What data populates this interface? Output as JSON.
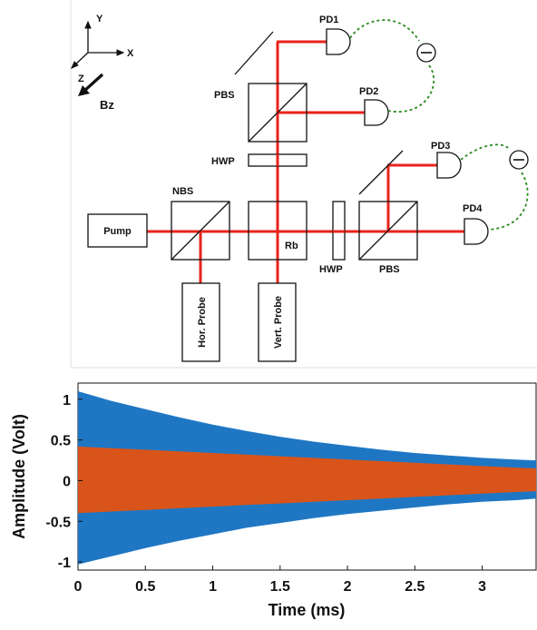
{
  "diagram": {
    "axes_labels": {
      "y": "Y",
      "x": "X",
      "z": "Z",
      "field": "Bz"
    },
    "components": {
      "pump": "Pump",
      "nbs": "NBS",
      "rb": "Rb",
      "pbs_top": "PBS",
      "hwp_top": "HWP",
      "hwp_right": "HWP",
      "pbs_right": "PBS",
      "pd1": "PD1",
      "pd2": "PD2",
      "pd3": "PD3",
      "pd4": "PD4",
      "hor_probe": "Hor. Probe",
      "vert_probe": "Vert. Probe"
    },
    "colors": {
      "beam": "#e8231b",
      "signal_link": "#2a8a1f",
      "outline": "#111111"
    }
  },
  "chart_data": {
    "type": "area",
    "xlabel": "Time (ms)",
    "ylabel": "Amplitude (Volt)",
    "xlim": [
      0,
      3.4
    ],
    "ylim": [
      -1.1,
      1.2
    ],
    "xticks": [
      0,
      0.5,
      1,
      1.5,
      2,
      2.5,
      3
    ],
    "xtick_labels": [
      "0",
      "0.5",
      "1",
      "1.5",
      "2",
      "2.5",
      "3"
    ],
    "yticks": [
      1,
      0.5,
      0,
      -0.5,
      -1
    ],
    "ytick_labels": [
      "1",
      "0.5",
      "0",
      "-0.5",
      "-1"
    ],
    "grid": false,
    "series": [
      {
        "color": "#1f77c4",
        "x": [
          0,
          0.25,
          0.5,
          0.75,
          1,
          1.25,
          1.5,
          1.75,
          2,
          2.25,
          2.5,
          2.75,
          3,
          3.25,
          3.4
        ],
        "upper": [
          1.1,
          0.98,
          0.88,
          0.78,
          0.69,
          0.61,
          0.54,
          0.48,
          0.43,
          0.38,
          0.34,
          0.31,
          0.28,
          0.26,
          0.25
        ],
        "lower": [
          -1.03,
          -0.93,
          -0.83,
          -0.74,
          -0.66,
          -0.58,
          -0.52,
          -0.46,
          -0.41,
          -0.37,
          -0.33,
          -0.29,
          -0.26,
          -0.24,
          -0.22
        ]
      },
      {
        "color": "#d9541a",
        "x": [
          0,
          0.25,
          0.5,
          0.75,
          1,
          1.25,
          1.5,
          1.75,
          2,
          2.25,
          2.5,
          2.75,
          3,
          3.25,
          3.4
        ],
        "upper": [
          0.42,
          0.4,
          0.38,
          0.36,
          0.34,
          0.32,
          0.3,
          0.28,
          0.26,
          0.24,
          0.22,
          0.2,
          0.18,
          0.16,
          0.15
        ],
        "lower": [
          -0.4,
          -0.38,
          -0.36,
          -0.34,
          -0.32,
          -0.3,
          -0.28,
          -0.26,
          -0.24,
          -0.22,
          -0.2,
          -0.18,
          -0.16,
          -0.14,
          -0.13
        ]
      }
    ]
  }
}
